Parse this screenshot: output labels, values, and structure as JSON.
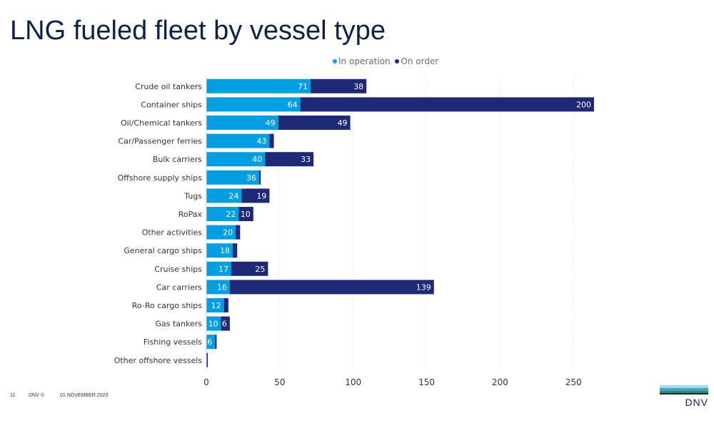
{
  "page": {
    "title": "LNG fueled fleet by vessel type"
  },
  "legend": {
    "in_operation": "In operation",
    "on_order": "On order"
  },
  "footer": {
    "page_number": "11",
    "copyright": "DNV ©",
    "date": "01 NOVEMBER 2023"
  },
  "logo": {
    "text": "DNV"
  },
  "colors": {
    "in_operation": "#009fe3",
    "on_order": "#1e2a78",
    "title": "#0f204b",
    "logo_light": "#a8d8ea",
    "logo_mid": "#3fa4d2",
    "logo_green": "#2f8f4e",
    "logo_dark": "#0f204b"
  },
  "chart_data": {
    "type": "bar",
    "orientation": "horizontal",
    "stacked": true,
    "title": "LNG fueled fleet by vessel type",
    "categories": [
      "Crude oil tankers",
      "Container ships",
      "Oil/Chemical tankers",
      "Car/Passenger ferries",
      "Bulk carriers",
      "Offshore supply ships",
      "Tugs",
      "RoPax",
      "Other activities",
      "General cargo ships",
      "Cruise ships",
      "Car carriers",
      "Ro-Ro cargo ships",
      "Gas tankers",
      "Fishing vessels",
      "Other offshore vessels"
    ],
    "series": [
      {
        "name": "In operation",
        "values": [
          71,
          64,
          49,
          43,
          40,
          36,
          24,
          22,
          20,
          18,
          17,
          16,
          12,
          10,
          6,
          0
        ],
        "labels": [
          "71",
          "64",
          "49",
          "43",
          "40",
          "36",
          "24",
          "22",
          "20",
          "18",
          "17",
          "16",
          "12",
          "10",
          "6",
          ""
        ]
      },
      {
        "name": "On order",
        "values": [
          38,
          200,
          49,
          3,
          33,
          1,
          19,
          10,
          3,
          3,
          25,
          139,
          3,
          6,
          1,
          1
        ],
        "labels": [
          "38",
          "200",
          "49",
          "",
          "33",
          "",
          "19",
          "10",
          "",
          "",
          "25",
          "139",
          "",
          "6",
          "",
          ""
        ]
      }
    ],
    "xlim": [
      0,
      264
    ],
    "xticks": [
      0,
      50,
      100,
      150,
      200,
      250
    ],
    "xlabel": "",
    "ylabel": "",
    "grid": "vertical-dotted",
    "legend_position": "top-center"
  }
}
